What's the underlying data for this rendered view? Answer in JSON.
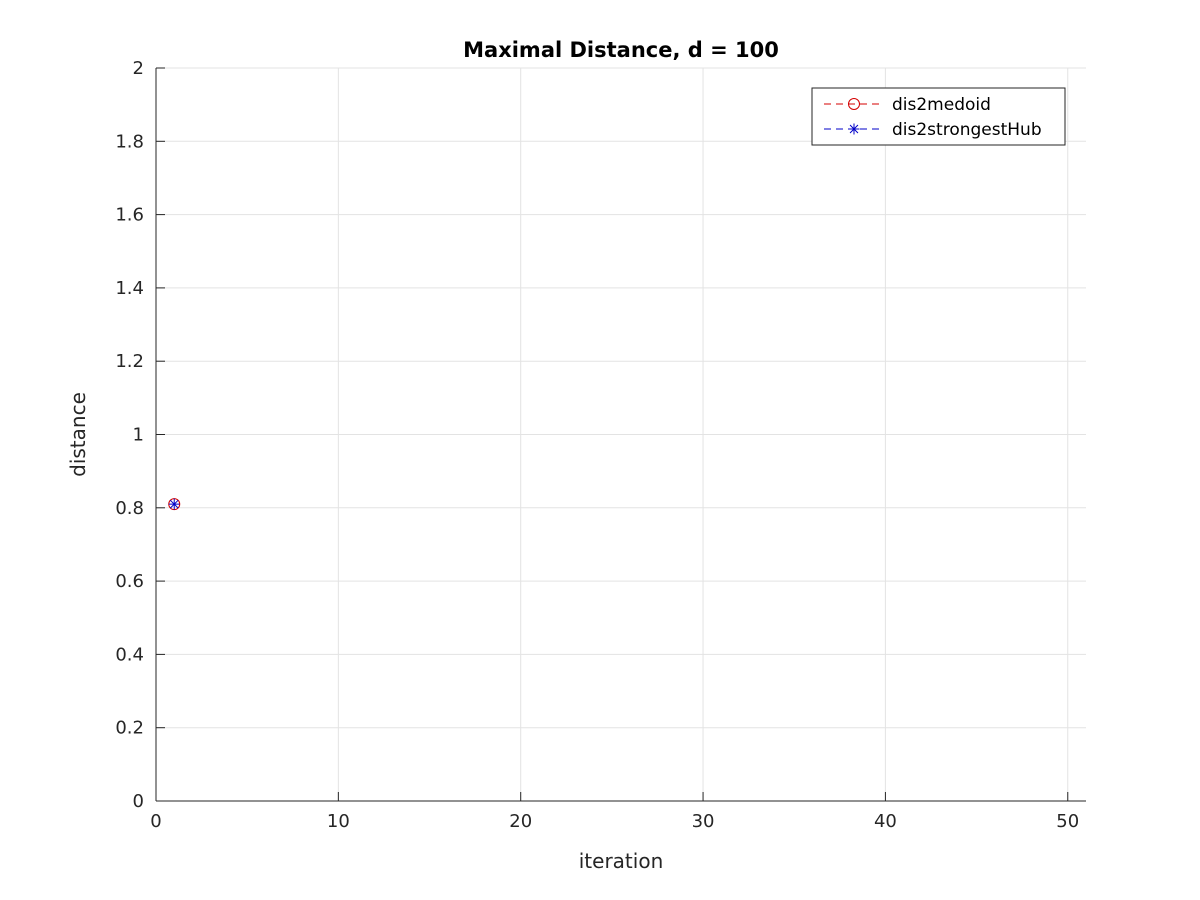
{
  "chart_data": {
    "type": "line",
    "title": "Maximal Distance, d = 100",
    "xlabel": "iteration",
    "ylabel": "distance",
    "xlim": [
      0,
      51
    ],
    "ylim": [
      0,
      2
    ],
    "xticks": [
      0,
      10,
      20,
      30,
      40,
      50
    ],
    "yticks": [
      0,
      0.2,
      0.4,
      0.6,
      0.8,
      1,
      1.2,
      1.4,
      1.6,
      1.8,
      2
    ],
    "grid": true,
    "legend_position": "top-right",
    "series": [
      {
        "name": "dis2medoid",
        "color": "#d40000",
        "marker": "circle",
        "line_style": "dashed",
        "x": [
          1
        ],
        "y": [
          0.81
        ]
      },
      {
        "name": "dis2strongestHub",
        "color": "#0000c8",
        "marker": "asterisk",
        "line_style": "dashed",
        "x": [
          1
        ],
        "y": [
          0.81
        ]
      }
    ]
  }
}
